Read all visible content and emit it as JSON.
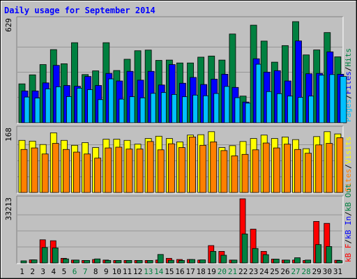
{
  "chart_data": [
    {
      "type": "bar",
      "title": "Daily usage for September 2014",
      "ymax_label": "629",
      "legend": [
        {
          "name": "Pages",
          "color": "#00c0ff"
        },
        {
          "name": "Files",
          "color": "#0000ff"
        },
        {
          "name": "Hits",
          "color": "#008040"
        }
      ],
      "legend_sep": "/",
      "ymax": 629,
      "series": [
        {
          "name": "Hits",
          "color": "#008040",
          "values": [
            242,
            298,
            362,
            455,
            367,
            498,
            300,
            323,
            498,
            325,
            395,
            448,
            452,
            388,
            390,
            372,
            372,
            408,
            415,
            390,
            552,
            166,
            607,
            508,
            377,
            480,
            629,
            422,
            453,
            561,
            410
          ]
        },
        {
          "name": "Files",
          "color": "#0000ff",
          "values": [
            198,
            198,
            248,
            357,
            232,
            227,
            288,
            232,
            307,
            260,
            320,
            265,
            320,
            235,
            362,
            246,
            282,
            238,
            271,
            302,
            220,
            129,
            398,
            315,
            324,
            260,
            509,
            305,
            307,
            441,
            302
          ]
        },
        {
          "name": "Pages",
          "color": "#00c0ff",
          "values": [
            160,
            154,
            211,
            224,
            163,
            215,
            206,
            144,
            273,
            147,
            162,
            155,
            183,
            188,
            176,
            162,
            172,
            168,
            182,
            226,
            156,
            122,
            364,
            194,
            181,
            166,
            158,
            166,
            296,
            300,
            288
          ]
        }
      ]
    },
    {
      "type": "bar",
      "ymax_label": "168",
      "legend": [
        {
          "name": "Sites",
          "color": "#ff8000"
        },
        {
          "name": "Visits",
          "color": "#ffff00"
        }
      ],
      "legend_sep": "/",
      "ymax": 168,
      "series": [
        {
          "name": "Visits",
          "color": "#ffff00",
          "values": [
            138,
            136,
            127,
            158,
            138,
            125,
            132,
            119,
            141,
            141,
            138,
            128,
            143,
            149,
            143,
            134,
            152,
            153,
            161,
            119,
            124,
            135,
            143,
            152,
            143,
            147,
            140,
            116,
            148,
            161,
            155
          ]
        },
        {
          "name": "Sites",
          "color": "#ff8000",
          "values": [
            114,
            118,
            102,
            130,
            114,
            107,
            102,
            91,
            118,
            120,
            115,
            115,
            135,
            113,
            129,
            119,
            147,
            125,
            134,
            111,
            97,
            101,
            113,
            131,
            118,
            128,
            114,
            104,
            126,
            130,
            145
          ]
        }
      ]
    },
    {
      "type": "bar",
      "ymax_label": "33213",
      "legend": [
        {
          "name": "kB F",
          "color": "#ff0000"
        },
        {
          "name": "kB In",
          "color": "#0000ff"
        },
        {
          "name": "kB Out",
          "color": "#008040"
        }
      ],
      "legend_sep": "/",
      "ymax": 33213,
      "series": [
        {
          "name": "kB F",
          "color": "#ff0000",
          "values": [
            0,
            1600,
            12000,
            11500,
            2400,
            1500,
            1300,
            1800,
            1500,
            1300,
            1300,
            1300,
            1300,
            1500,
            2400,
            1800,
            1800,
            1500,
            9000,
            6000,
            1500,
            33213,
            17500,
            6000,
            2000,
            1500,
            1500,
            1300,
            21500,
            20500,
            1400
          ]
        },
        {
          "name": "kB Out",
          "color": "#008040",
          "values": [
            1100,
            1600,
            8000,
            7800,
            2100,
            1500,
            1300,
            2100,
            1300,
            1300,
            1300,
            1300,
            1300,
            4400,
            1400,
            1300,
            1800,
            1600,
            6000,
            4000,
            1500,
            15000,
            7500,
            4300,
            2000,
            1500,
            2700,
            1500,
            9500,
            8500,
            1200
          ]
        }
      ]
    }
  ],
  "x_labels": [
    "1",
    "2",
    "3",
    "4",
    "5",
    "6",
    "7",
    "8",
    "9",
    "10",
    "11",
    "12",
    "13",
    "14",
    "15",
    "16",
    "17",
    "18",
    "19",
    "20",
    "21",
    "22",
    "23",
    "24",
    "25",
    "26",
    "27",
    "28",
    "29",
    "30",
    "31"
  ],
  "weekend_days": [
    6,
    7,
    13,
    14,
    20,
    21,
    27,
    28
  ],
  "colors": {
    "frame_bg": "#c0c0c0",
    "plot_bg": "#c0c0c0",
    "title": "#0000ff",
    "weekend_label": "#008040",
    "weekday_label": "#000000"
  }
}
